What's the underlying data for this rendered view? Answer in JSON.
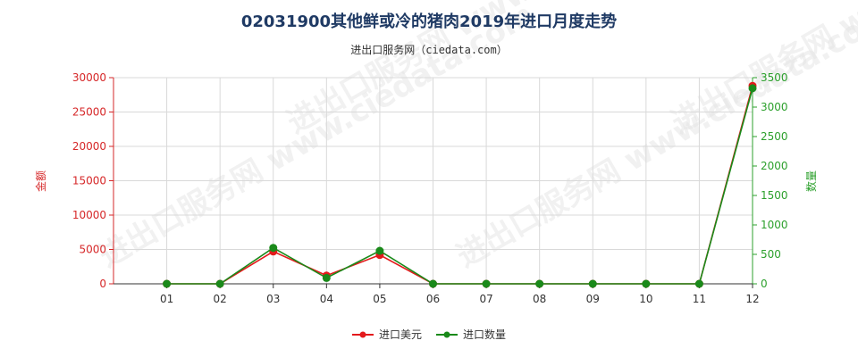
{
  "chart_data": {
    "type": "line",
    "title": "02031900其他鲜或冷的猪肉2019年进口月度走势",
    "subtitle": "进出口服务网（ciedata.com）",
    "categories": [
      "01",
      "02",
      "03",
      "04",
      "05",
      "06",
      "07",
      "08",
      "09",
      "10",
      "11",
      "12"
    ],
    "y_left": {
      "label": "金额",
      "ylim": [
        0,
        30000
      ],
      "ticks": [
        0,
        5000,
        10000,
        15000,
        20000,
        25000,
        30000
      ],
      "color": "#d62728"
    },
    "y_right": {
      "label": "数量",
      "ylim": [
        0,
        3500
      ],
      "ticks": [
        0,
        500,
        1000,
        1500,
        2000,
        2500,
        3000,
        3500
      ],
      "color": "#2ca02c"
    },
    "series": [
      {
        "name": "进口美元",
        "axis": "left",
        "color": "#e31a1c",
        "values": [
          0,
          0,
          4700,
          1200,
          4200,
          0,
          0,
          0,
          0,
          0,
          0,
          28800
        ]
      },
      {
        "name": "进口数量",
        "axis": "right",
        "color": "#1a8a1a",
        "values": [
          0,
          0,
          610,
          100,
          560,
          0,
          0,
          0,
          0,
          0,
          0,
          3320
        ]
      }
    ],
    "grid": true,
    "legend_position": "bottom-center"
  },
  "watermark_text": "进出口服务网 www.ciedata.com"
}
